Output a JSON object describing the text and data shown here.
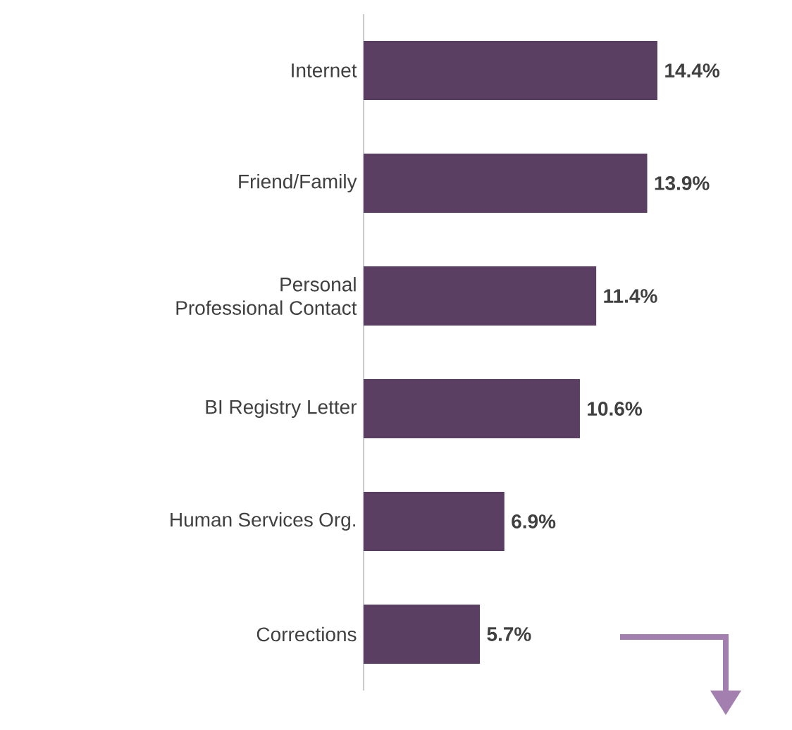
{
  "chart_data": {
    "type": "bar",
    "orientation": "horizontal",
    "categories": [
      "Internet",
      "Friend/Family",
      "Personal Professional Contact",
      "BI Registry Letter",
      "Human Services Org.",
      "Corrections"
    ],
    "values": [
      14.4,
      13.9,
      11.4,
      10.6,
      6.9,
      5.7
    ],
    "value_labels": [
      "14.4%",
      "13.9%",
      "11.4%",
      "10.6%",
      "6.9%",
      "5.7%"
    ],
    "color": "#5b3f63"
  }
}
